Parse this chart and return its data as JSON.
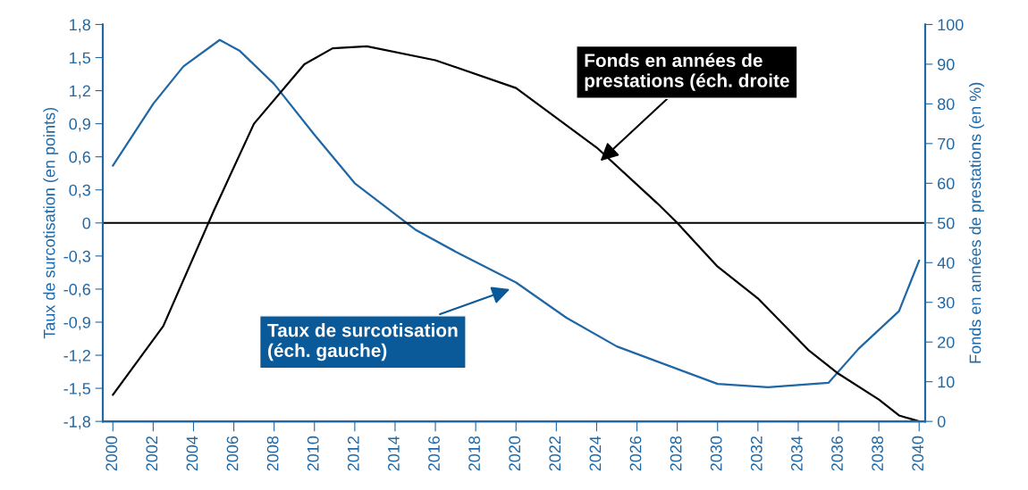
{
  "chart_data": {
    "type": "line",
    "ylabel": "Taux de surcotisation (en points)",
    "y2label": "Fonds en années de prestations (en %)",
    "xlim": [
      1999.5,
      2040.3
    ],
    "xticks": [
      2000,
      2002,
      2004,
      2006,
      2008,
      2010,
      2012,
      2014,
      2016,
      2018,
      2020,
      2022,
      2024,
      2026,
      2028,
      2030,
      2032,
      2034,
      2036,
      2038,
      2040
    ],
    "ylim": [
      -1.8,
      1.8
    ],
    "yticks": [
      {
        "value": -1.8,
        "label": "-1,8"
      },
      {
        "value": -1.5,
        "label": "-1,5"
      },
      {
        "value": -1.2,
        "label": "-1,2"
      },
      {
        "value": -0.9,
        "label": "-0,9"
      },
      {
        "value": -0.6,
        "label": "-0,6"
      },
      {
        "value": -0.3,
        "label": "-0,3"
      },
      0,
      {
        "value": 0.3,
        "label": "0,3"
      },
      {
        "value": 0.6,
        "label": "0,6"
      },
      {
        "value": 0.9,
        "label": "0,9"
      },
      {
        "value": 1.2,
        "label": "1,2"
      },
      {
        "value": 1.5,
        "label": "1,5"
      },
      {
        "value": 1.8,
        "label": "1,8"
      }
    ],
    "y2lim": [
      0,
      100
    ],
    "y2ticks": [
      0,
      10,
      20,
      30,
      40,
      50,
      60,
      70,
      80,
      90,
      100
    ],
    "series": [
      {
        "color": "#1f67a5",
        "x": [
          2000,
          2002,
          2003.5,
          2005.3,
          2006.3,
          2008,
          2010,
          2012,
          2015,
          2017,
          2020,
          2022.5,
          2025,
          2030,
          2032.5,
          2035.5,
          2037,
          2039,
          2040
        ],
        "values": [
          0.52,
          1.08,
          1.42,
          1.66,
          1.56,
          1.26,
          0.8,
          0.36,
          -0.06,
          -0.26,
          -0.54,
          -0.86,
          -1.12,
          -1.46,
          -1.49,
          -1.45,
          -1.14,
          -0.8,
          -0.34
        ]
      },
      {
        "color": "#000000",
        "axis": "y2",
        "x": [
          2000,
          2002.5,
          2005,
          2007,
          2009.5,
          2010.9,
          2012.6,
          2016,
          2020,
          2024,
          2027,
          2028,
          2030,
          2032,
          2034.5,
          2036,
          2038,
          2039,
          2040
        ],
        "values": [
          6.7,
          24,
          53,
          75,
          90,
          94,
          94.5,
          91,
          84,
          69,
          55,
          50,
          39,
          31,
          18,
          12,
          5.5,
          1.5,
          0
        ]
      }
    ],
    "ref_lines": [
      {
        "axis": "y",
        "value": 0,
        "color": "#000000"
      }
    ],
    "annotations": [
      "Fonds en années de\nprestations (éch. droite",
      "Taux de surcotisation\n(éch. gauche)"
    ],
    "grid": false,
    "legend": false
  }
}
